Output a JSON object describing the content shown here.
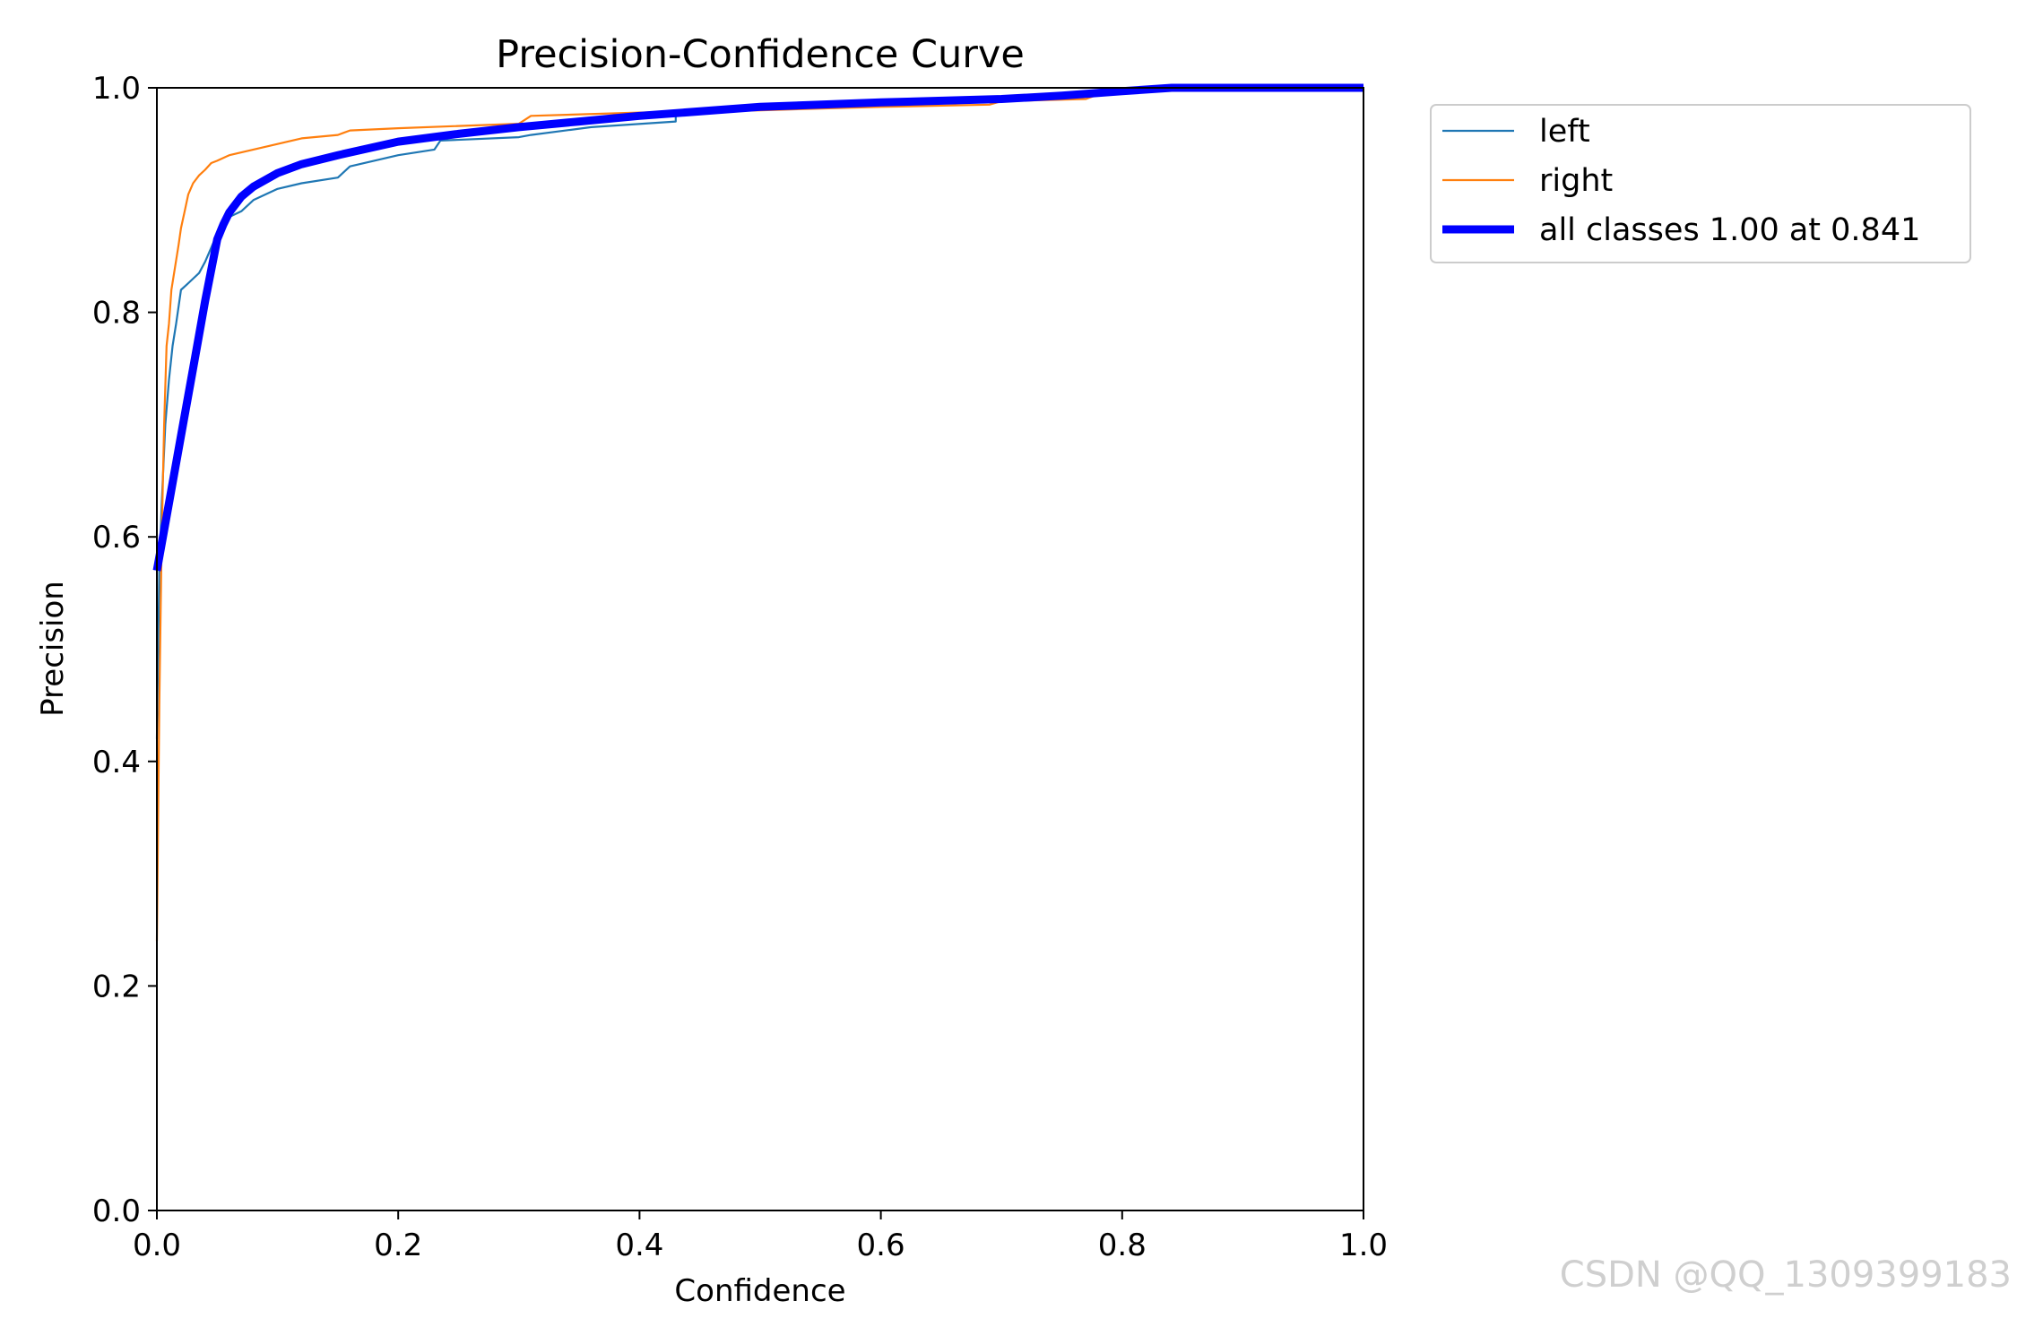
{
  "watermark": "CSDN @QQ_1309399183",
  "colors": {
    "left": "#1f77b4",
    "right": "#ff7f0e",
    "all": "#0000ff",
    "axis": "#000000",
    "legend_border": "#cccccc"
  },
  "chart_data": {
    "type": "line",
    "title": "Precision-Confidence Curve",
    "xlabel": "Confidence",
    "ylabel": "Precision",
    "xlim": [
      0.0,
      1.0
    ],
    "ylim": [
      0.0,
      1.0
    ],
    "xticks": [
      "0.0",
      "0.2",
      "0.4",
      "0.6",
      "0.8",
      "1.0"
    ],
    "yticks": [
      "0.0",
      "0.2",
      "0.4",
      "0.6",
      "0.8",
      "1.0"
    ],
    "grid": false,
    "legend_position": "outside-top-right",
    "series": [
      {
        "name": "left",
        "color": "#1f77b4",
        "x": [
          0.0,
          0.002,
          0.004,
          0.007,
          0.01,
          0.013,
          0.016,
          0.02,
          0.025,
          0.03,
          0.035,
          0.04,
          0.05,
          0.06,
          0.07,
          0.08,
          0.1,
          0.12,
          0.15,
          0.16,
          0.2,
          0.23,
          0.235,
          0.3,
          0.31,
          0.36,
          0.43,
          0.43,
          0.5,
          0.6,
          0.7,
          0.78,
          0.8,
          0.82,
          0.84,
          0.9,
          1.0
        ],
        "y": [
          0.42,
          0.57,
          0.63,
          0.7,
          0.74,
          0.77,
          0.79,
          0.82,
          0.825,
          0.83,
          0.835,
          0.845,
          0.87,
          0.885,
          0.89,
          0.9,
          0.91,
          0.915,
          0.92,
          0.93,
          0.94,
          0.945,
          0.953,
          0.956,
          0.958,
          0.965,
          0.97,
          0.975,
          0.982,
          0.987,
          0.99,
          0.993,
          0.996,
          0.998,
          1.0,
          1.0,
          1.0
        ]
      },
      {
        "name": "right",
        "color": "#ff7f0e",
        "x": [
          0.0,
          0.002,
          0.004,
          0.006,
          0.008,
          0.01,
          0.012,
          0.015,
          0.018,
          0.02,
          0.023,
          0.026,
          0.03,
          0.035,
          0.04,
          0.045,
          0.05,
          0.06,
          0.08,
          0.1,
          0.12,
          0.15,
          0.16,
          0.2,
          0.3,
          0.31,
          0.4,
          0.5,
          0.6,
          0.69,
          0.7,
          0.77,
          0.78,
          0.8,
          0.82,
          0.84,
          0.9,
          1.0
        ],
        "y": [
          0.24,
          0.45,
          0.6,
          0.7,
          0.77,
          0.79,
          0.82,
          0.84,
          0.86,
          0.875,
          0.89,
          0.905,
          0.915,
          0.922,
          0.927,
          0.933,
          0.935,
          0.94,
          0.945,
          0.95,
          0.955,
          0.958,
          0.962,
          0.964,
          0.968,
          0.975,
          0.978,
          0.98,
          0.983,
          0.985,
          0.988,
          0.99,
          0.994,
          0.996,
          0.998,
          1.0,
          1.0,
          1.0
        ]
      },
      {
        "name": "all classes 1.00 at 0.841",
        "color": "#0000ff",
        "width": "thick",
        "x": [
          0.0,
          0.01,
          0.02,
          0.03,
          0.04,
          0.05,
          0.055,
          0.06,
          0.07,
          0.08,
          0.1,
          0.12,
          0.15,
          0.2,
          0.25,
          0.3,
          0.35,
          0.4,
          0.5,
          0.6,
          0.7,
          0.75,
          0.8,
          0.841,
          0.9,
          1.0
        ],
        "y": [
          0.57,
          0.63,
          0.69,
          0.75,
          0.81,
          0.865,
          0.878,
          0.889,
          0.903,
          0.912,
          0.924,
          0.932,
          0.94,
          0.952,
          0.959,
          0.965,
          0.97,
          0.975,
          0.983,
          0.987,
          0.99,
          0.993,
          0.997,
          1.0,
          1.0,
          1.0
        ]
      }
    ]
  }
}
